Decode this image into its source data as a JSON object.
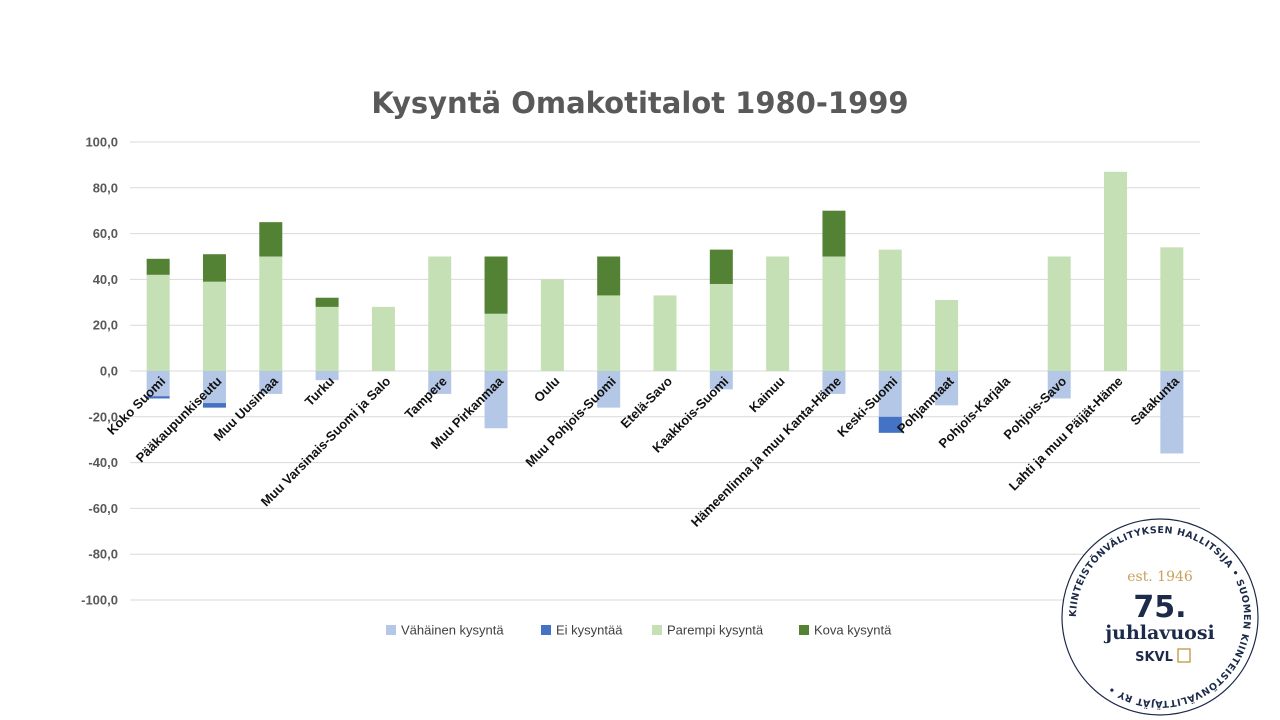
{
  "chart_data": {
    "type": "bar",
    "title": "Kysyntä Omakotitalot 1980-1999",
    "ylim": [
      -100,
      100
    ],
    "yticks": [
      "100,0",
      "80,0",
      "60,0",
      "40,0",
      "20,0",
      "0,0",
      "-20,0",
      "-40,0",
      "-60,0",
      "-80,0",
      "-100,0"
    ],
    "ytick_values": [
      100,
      80,
      60,
      40,
      20,
      0,
      -20,
      -40,
      -60,
      -80,
      -100
    ],
    "grid": true,
    "legend_position": "bottom",
    "categories": [
      "Koko Suomi",
      "Pääkaupunkiseutu",
      "Muu Uusimaa",
      "Turku",
      "Muu Varsinais-Suomi ja Salo",
      "Tampere",
      "Muu Pirkanmaa",
      "Oulu",
      "Muu Pohjois-Suomi",
      "Etelä-Savo",
      "Kaakkois-Suomi",
      "Kainuu",
      "Hämeenlinna ja muu Kanta-Häme",
      "Keski-Suomi",
      "Pohjanmaat",
      "Pohjois-Karjala",
      "Pohjois-Savo",
      "Lahti ja muu Päijät-Häme",
      "Satakunta"
    ],
    "series": [
      {
        "name": "Vähäinen kysyntä",
        "color": "#b4c7e7",
        "values": [
          -11,
          -14,
          -10,
          -4,
          0,
          -10,
          -25,
          0,
          -16,
          0,
          -8,
          0,
          -10,
          -20,
          -15,
          0,
          -12,
          0,
          -36
        ]
      },
      {
        "name": "Ei kysyntää",
        "color": "#4472c4",
        "values": [
          -1,
          -2,
          0,
          0,
          0,
          0,
          0,
          0,
          0,
          0,
          0,
          0,
          0,
          -7,
          0,
          0,
          0,
          0,
          0
        ]
      },
      {
        "name": "Parempi kysyntä",
        "color": "#c5e0b4",
        "values": [
          42,
          39,
          50,
          28,
          28,
          50,
          25,
          40,
          33,
          33,
          38,
          50,
          50,
          53,
          31,
          0,
          50,
          87,
          54
        ]
      },
      {
        "name": "Kova kysyntä",
        "color": "#548235",
        "values": [
          7,
          12,
          15,
          4,
          0,
          0,
          25,
          0,
          17,
          0,
          15,
          0,
          20,
          0,
          0,
          0,
          0,
          0,
          0
        ]
      }
    ]
  },
  "seal": {
    "ring_text": "KIINTEISTÖNVÄLITYKSEN HALLITSIJA • SUOMEN KIINTEISTÖNVÄLITTÄJÄT RY •",
    "est": "est. 1946",
    "number": "75.",
    "word": "juhlavuosi",
    "brand": "SKVL"
  }
}
